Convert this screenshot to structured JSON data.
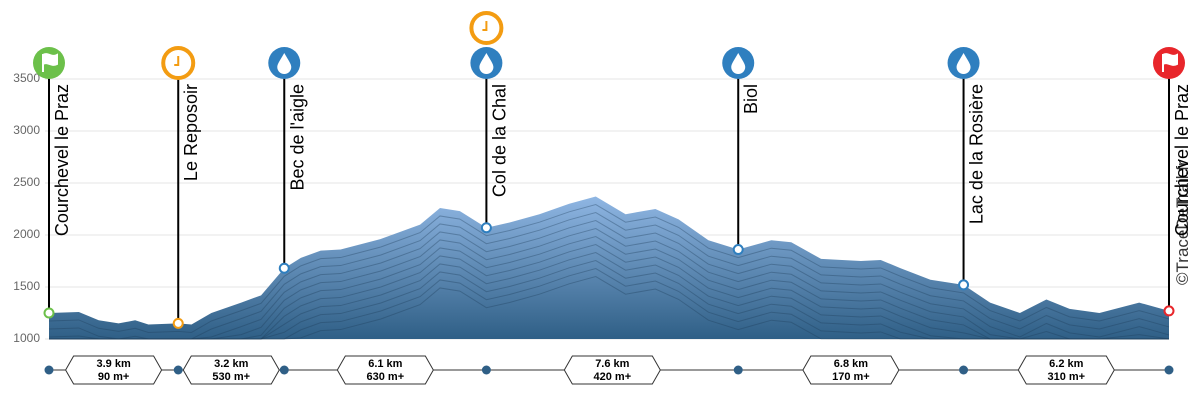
{
  "chart_data": {
    "type": "elevation-profile",
    "x": [
      0,
      0.9,
      1.5,
      2.1,
      2.6,
      3.0,
      3.9,
      4.3,
      4.9,
      5.8,
      6.4,
      7.1,
      7.6,
      8.2,
      8.8,
      10.0,
      11.2,
      11.8,
      12.4,
      13.2,
      13.9,
      14.8,
      15.7,
      16.5,
      17.4,
      18.3,
      19.0,
      19.9,
      20.8,
      21.8,
      22.4,
      23.3,
      24.5,
      25.1,
      25.7,
      26.6,
      27.6,
      28.4,
      29.3,
      30.1,
      30.8,
      31.7,
      32.9,
      33.8
    ],
    "values": [
      1250,
      1260,
      1180,
      1150,
      1180,
      1140,
      1150,
      1140,
      1250,
      1350,
      1420,
      1680,
      1780,
      1850,
      1860,
      1960,
      2100,
      2260,
      2230,
      2070,
      2120,
      2200,
      2300,
      2370,
      2200,
      2250,
      2150,
      1950,
      1860,
      1950,
      1930,
      1770,
      1750,
      1760,
      1680,
      1570,
      1520,
      1350,
      1250,
      1380,
      1290,
      1250,
      1350,
      1270
    ],
    "color": "#2f5f86",
    "xlim": [
      0,
      33.8
    ],
    "ylim": [
      1000,
      3500
    ],
    "yticks": [
      1000,
      1500,
      2000,
      2500,
      3000,
      3500
    ],
    "grid": true,
    "waypoints": [
      {
        "name": "Courchevel le Praz",
        "elevation": 1250,
        "icons": [
          "start"
        ]
      },
      {
        "name": "Le Reposoir",
        "elevation": 1150,
        "icons": [
          "timer"
        ]
      },
      {
        "name": "Bec de l'aigle",
        "elevation": 1680,
        "icons": [
          "water"
        ]
      },
      {
        "name": "Col de la Chal",
        "elevation": 2070,
        "icons": [
          "timer",
          "water"
        ]
      },
      {
        "name": "Biol",
        "elevation": 1860,
        "icons": [
          "water"
        ]
      },
      {
        "name": "Lac de la Rosière",
        "elevation": 1520,
        "icons": [
          "water"
        ]
      },
      {
        "name": "Courchevel le Praz",
        "elevation": 1270,
        "icons": [
          "finish"
        ]
      }
    ],
    "segments": [
      {
        "distance": 3.9,
        "distance_label": "3.9 km",
        "gain": 90,
        "gain_label": "90 m+"
      },
      {
        "distance": 3.2,
        "distance_label": "3.2 km",
        "gain": 530,
        "gain_label": "530 m+"
      },
      {
        "distance": 6.1,
        "distance_label": "6.1 km",
        "gain": 630,
        "gain_label": "630 m+"
      },
      {
        "distance": 7.6,
        "distance_label": "7.6 km",
        "gain": 420,
        "gain_label": "420 m+"
      },
      {
        "distance": 6.8,
        "distance_label": "6.8 km",
        "gain": 170,
        "gain_label": "170 m+"
      },
      {
        "distance": 6.2,
        "distance_label": "6.2 km",
        "gain": 310,
        "gain_label": "310 m+"
      }
    ],
    "watermark": "©TraceDeTrail.fr"
  }
}
